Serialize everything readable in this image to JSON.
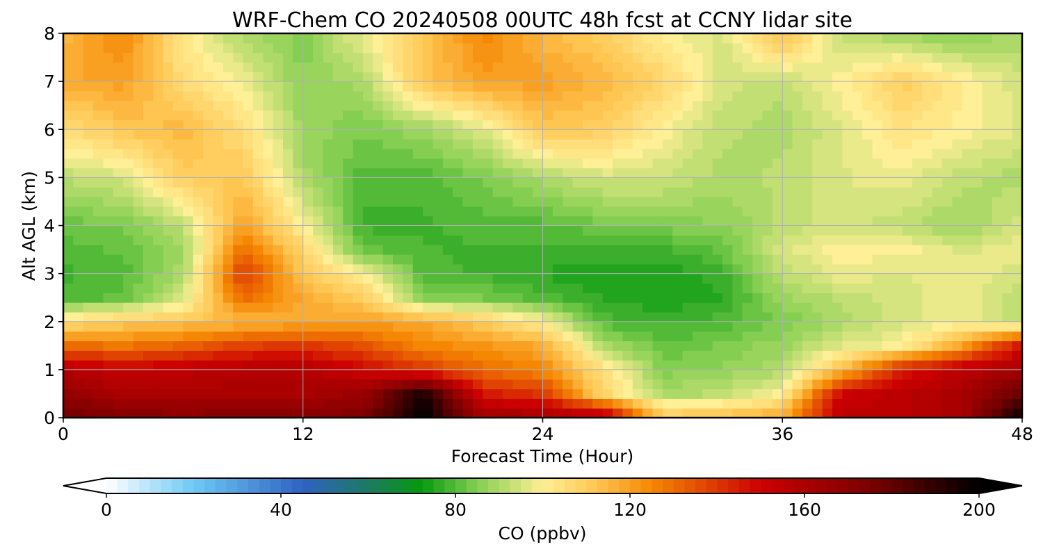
{
  "chart_data": {
    "type": "heatmap",
    "title": "WRF-Chem CO  20240508 00UTC 48h fcst at CCNY lidar site",
    "xlabel": "Forecast Time (Hour)",
    "ylabel": "Alt AGL (km)",
    "xlim": [
      0,
      48
    ],
    "ylim": [
      0,
      8
    ],
    "xticks": [
      "0",
      "12",
      "24",
      "36",
      "48"
    ],
    "yticks": [
      "0",
      "1",
      "2",
      "3",
      "4",
      "5",
      "6",
      "7",
      "8"
    ],
    "grid": true,
    "x": [
      0,
      3,
      6,
      9,
      12,
      15,
      18,
      21,
      24,
      27,
      30,
      33,
      36,
      39,
      42,
      45,
      48
    ],
    "y": [
      0.1,
      0.5,
      1.0,
      1.5,
      2.0,
      2.5,
      3.0,
      3.5,
      4.0,
      5.0,
      6.0,
      7.0,
      8.0
    ],
    "z": [
      [
        175,
        170,
        168,
        170,
        170,
        172,
        200,
        160,
        158,
        150,
        108,
        110,
        115,
        155,
        155,
        160,
        195
      ],
      [
        168,
        160,
        160,
        160,
        160,
        165,
        195,
        145,
        140,
        108,
        90,
        92,
        100,
        150,
        155,
        160,
        180
      ],
      [
        158,
        152,
        155,
        158,
        158,
        150,
        140,
        130,
        125,
        105,
        85,
        87,
        90,
        115,
        145,
        155,
        162
      ],
      [
        130,
        128,
        132,
        138,
        140,
        135,
        125,
        122,
        118,
        90,
        82,
        84,
        88,
        96,
        100,
        120,
        148
      ],
      [
        105,
        110,
        112,
        115,
        118,
        120,
        118,
        110,
        100,
        80,
        78,
        80,
        84,
        90,
        95,
        98,
        92
      ],
      [
        80,
        82,
        95,
        130,
        118,
        110,
        86,
        84,
        80,
        76,
        74,
        76,
        88,
        92,
        95,
        98,
        92
      ],
      [
        78,
        80,
        90,
        140,
        112,
        100,
        80,
        78,
        76,
        74,
        74,
        78,
        92,
        98,
        96,
        98,
        95
      ],
      [
        80,
        82,
        88,
        130,
        108,
        82,
        79,
        78,
        78,
        78,
        78,
        82,
        95,
        100,
        100,
        95,
        98
      ],
      [
        82,
        84,
        92,
        120,
        100,
        78,
        78,
        80,
        80,
        83,
        85,
        86,
        92,
        95,
        92,
        88,
        95
      ],
      [
        92,
        95,
        110,
        112,
        90,
        80,
        80,
        84,
        90,
        95,
        94,
        90,
        92,
        96,
        98,
        92,
        90
      ],
      [
        105,
        112,
        115,
        105,
        88,
        84,
        88,
        96,
        112,
        110,
        100,
        92,
        90,
        96,
        104,
        100,
        96
      ],
      [
        118,
        120,
        106,
        98,
        86,
        90,
        112,
        120,
        120,
        115,
        108,
        95,
        92,
        100,
        110,
        102,
        94
      ],
      [
        115,
        125,
        102,
        90,
        85,
        98,
        112,
        125,
        115,
        110,
        100,
        95,
        115,
        92,
        88,
        85,
        90
      ]
    ],
    "colorbar": {
      "label": "CO  (ppbv)",
      "ticks": [
        "0",
        "40",
        "80",
        "120",
        "160",
        "200"
      ],
      "range": [
        0,
        200
      ],
      "extend": "both"
    },
    "colormap_stops": [
      {
        "v": 0,
        "c": "#ffffff"
      },
      {
        "v": 20,
        "c": "#6ec9f5"
      },
      {
        "v": 45,
        "c": "#2e62c2"
      },
      {
        "v": 60,
        "c": "#1d7a62"
      },
      {
        "v": 72,
        "c": "#05990f"
      },
      {
        "v": 85,
        "c": "#84ce52"
      },
      {
        "v": 100,
        "c": "#ffef96"
      },
      {
        "v": 112,
        "c": "#ffc754"
      },
      {
        "v": 125,
        "c": "#f58703"
      },
      {
        "v": 150,
        "c": "#cc0000"
      },
      {
        "v": 175,
        "c": "#7a0000"
      },
      {
        "v": 200,
        "c": "#000000"
      }
    ]
  }
}
